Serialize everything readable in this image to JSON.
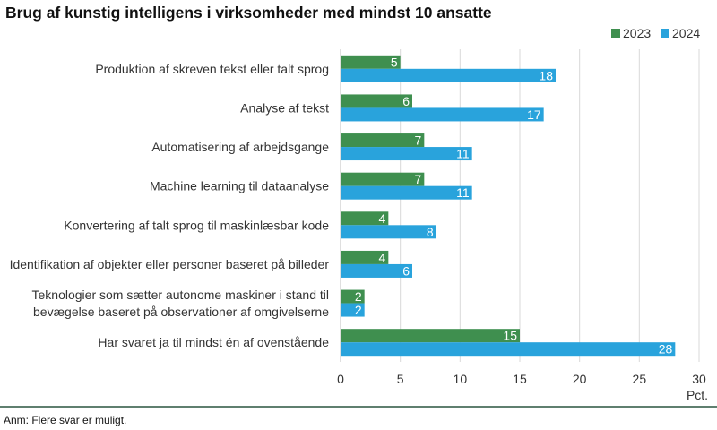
{
  "chart_data": {
    "type": "bar",
    "orientation": "horizontal",
    "title": "Brug af kunstig intelligens i virksomheder med mindst 10 ansatte",
    "categories": [
      [
        "Produktion af skreven tekst eller talt sprog"
      ],
      [
        "Analyse af tekst"
      ],
      [
        "Automatisering af arbejdsgange"
      ],
      [
        "Machine learning til dataanalyse"
      ],
      [
        "Konvertering af talt sprog til maskinlæsbar kode"
      ],
      [
        "Identifikation af objekter eller personer baseret på billeder"
      ],
      [
        "Teknologier som sætter autonome maskiner i stand til",
        "bevægelse baseret på observationer af omgivelserne"
      ],
      [
        "Har svaret ja til mindst én af ovenstående"
      ]
    ],
    "series": [
      {
        "name": "2023",
        "color": "#3f8f4f",
        "values": [
          5,
          6,
          7,
          7,
          4,
          4,
          2,
          15
        ]
      },
      {
        "name": "2024",
        "color": "#29a3dc",
        "values": [
          18,
          17,
          11,
          11,
          8,
          6,
          2,
          28
        ]
      }
    ],
    "xlim": [
      0,
      30
    ],
    "xticks": [
      0,
      5,
      10,
      15,
      20,
      25,
      30
    ],
    "xunit": "Pct.",
    "legend_position": "top-right",
    "grid": true
  },
  "note": "Anm: Flere svar er muligt."
}
